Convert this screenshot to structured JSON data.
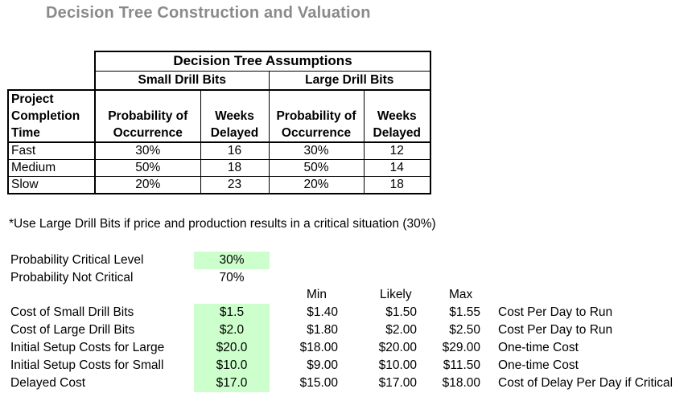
{
  "title": "Decision Tree Construction and Valuation",
  "assumptions": {
    "header": "Decision Tree Assumptions",
    "small_label": "Small Drill Bits",
    "large_label": "Large Drill Bits",
    "col_time": [
      "Project",
      "Completion",
      "Time"
    ],
    "col_prob": [
      "Probability of",
      "Occurrence"
    ],
    "col_weeks": [
      "Weeks",
      "Delayed"
    ],
    "rows": [
      {
        "time": "Fast",
        "small_prob": "30%",
        "small_weeks": "16",
        "large_prob": "30%",
        "large_weeks": "12"
      },
      {
        "time": "Medium",
        "small_prob": "50%",
        "small_weeks": "18",
        "large_prob": "50%",
        "large_weeks": "14"
      },
      {
        "time": "Slow",
        "small_prob": "20%",
        "small_weeks": "23",
        "large_prob": "20%",
        "large_weeks": "18"
      }
    ]
  },
  "note": "*Use Large Drill Bits if price and production results in a critical situation (30%)",
  "params": {
    "critical_label": "Probability Critical Level",
    "critical_value": "30%",
    "not_critical_label": "Probability Not Critical",
    "not_critical_value": "70%",
    "min_header": "Min",
    "likely_header": "Likely",
    "max_header": "Max",
    "rows": [
      {
        "label": "Cost of Small Drill Bits",
        "value": "$1.5",
        "min": "$1.40",
        "likely": "$1.50",
        "max": "$1.55",
        "desc": "Cost Per Day to Run"
      },
      {
        "label": "Cost of Large Drill Bits",
        "value": "$2.0",
        "min": "$1.80",
        "likely": "$2.00",
        "max": "$2.50",
        "desc": "Cost Per Day to Run"
      },
      {
        "label": "Initial Setup Costs for Large",
        "value": "$20.0",
        "min": "$18.00",
        "likely": "$20.00",
        "max": "$29.00",
        "desc": "One-time Cost"
      },
      {
        "label": "Initial Setup Costs for Small",
        "value": "$10.0",
        "min": "$9.00",
        "likely": "$10.00",
        "max": "$11.50",
        "desc": "One-time Cost"
      },
      {
        "label": "Delayed Cost",
        "value": "$17.0",
        "min": "$15.00",
        "likely": "$17.00",
        "max": "$18.00",
        "desc": "Cost of Delay Per Day if Critical"
      }
    ]
  },
  "colors": {
    "title": "#8a8a8a",
    "highlight": "#ccffcc"
  }
}
